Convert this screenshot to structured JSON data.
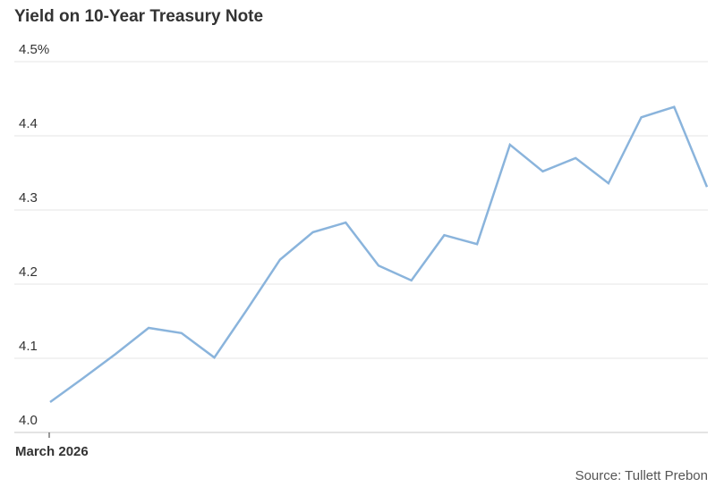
{
  "chart_data": {
    "type": "line",
    "title": "Yield on 10-Year Treasury Note",
    "source": "Source: Tullett Prebon",
    "x_tick_labels": [
      "March 2026"
    ],
    "y_ticks": [
      4.0,
      4.1,
      4.2,
      4.3,
      4.4,
      4.5
    ],
    "y_tick_labels": [
      "4.0",
      "4.1",
      "4.2",
      "4.3",
      "4.4",
      "4.5%"
    ],
    "ylim": [
      4.0,
      4.5
    ],
    "grid": true,
    "line_color": "#8ab4dc",
    "series": [
      {
        "values": [
          4.041,
          4.073,
          4.106,
          4.141,
          4.134,
          4.101,
          4.166,
          4.233,
          4.27,
          4.283,
          4.225,
          4.205,
          4.266,
          4.254,
          4.388,
          4.352,
          4.37,
          4.336,
          4.425,
          4.439,
          4.331
        ]
      }
    ]
  }
}
